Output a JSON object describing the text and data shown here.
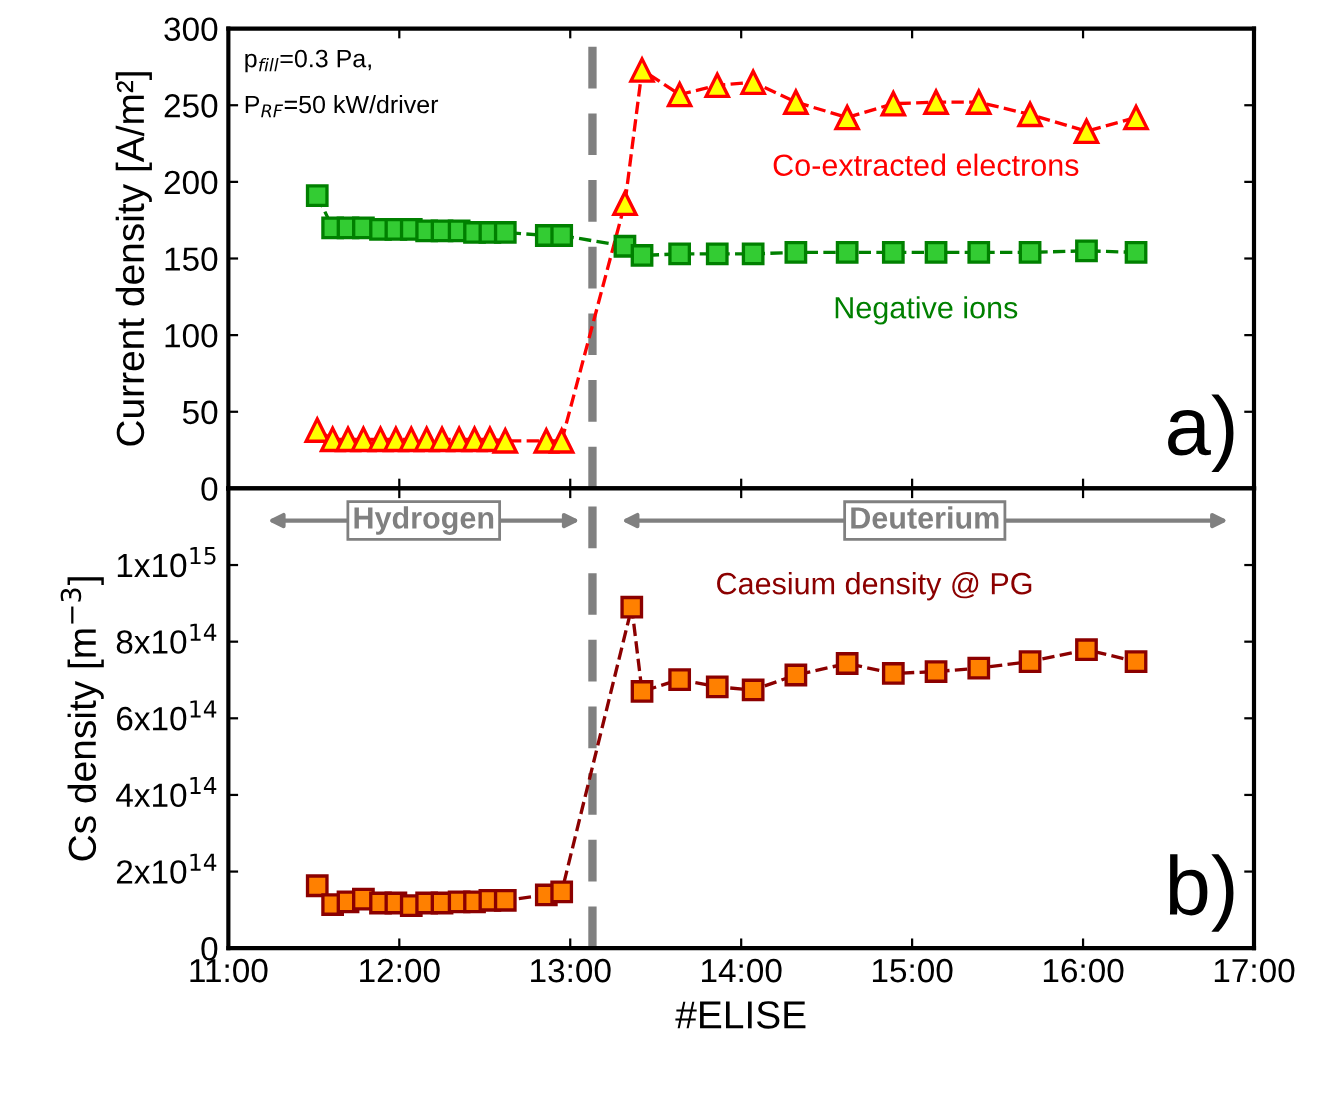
{
  "chart_data": [
    {
      "type": "line",
      "ylabel": "Current density [A/m²]",
      "tick_labels": "y",
      "marker": "circle",
      "line_style": "dashed",
      "xlim": [
        11,
        17
      ],
      "ylim": [
        0,
        300
      ],
      "yticks": [
        0,
        50,
        100,
        150,
        200,
        250,
        300
      ],
      "x": [
        11.52,
        11.61,
        11.7,
        11.79,
        11.89,
        11.98,
        12.07,
        12.16,
        12.25,
        12.35,
        12.44,
        12.53,
        12.62,
        12.86,
        12.95,
        13.32,
        13.42,
        13.64,
        13.86,
        14.07,
        14.32,
        14.62,
        14.89,
        15.14,
        15.39,
        15.69,
        16.02,
        16.31
      ],
      "series": [
        {
          "name": "Co-extracted electrons",
          "color": "#ff0000",
          "marker": "triangle",
          "values": [
            38,
            32,
            32,
            32,
            32,
            32,
            32,
            32,
            32,
            32,
            32,
            32,
            31,
            31,
            31,
            186,
            273,
            257,
            263,
            265,
            252,
            242,
            251,
            252,
            252,
            244,
            233,
            242
          ]
        },
        {
          "name": "Negative ions",
          "color": "#008000",
          "marker": "square",
          "values": [
            191,
            170,
            170,
            170,
            169,
            169,
            169,
            168,
            168,
            168,
            167,
            167,
            167,
            165,
            165,
            158,
            152,
            153,
            153,
            153,
            154,
            154,
            154,
            154,
            154,
            154,
            155,
            154
          ]
        }
      ],
      "ref_lines": [
        {
          "axis": "x",
          "value": 13.13,
          "color": "#808080",
          "line_style": "dashed"
        }
      ],
      "annotations": [
        "p$_{fill}$=0.3 Pa,",
        "P$_{RF}$=50 kW/driver",
        "a)"
      ]
    },
    {
      "type": "line",
      "ylabel": "Cs density [m$^{−3}$]",
      "xlabel": "#ELISE",
      "marker": "square",
      "line_style": "dashed",
      "xlim": [
        11,
        17
      ],
      "xticks": [
        {
          "value": 11,
          "label": "11:00"
        },
        {
          "value": 12,
          "label": "12:00"
        },
        {
          "value": 13,
          "label": "13:00"
        },
        {
          "value": 14,
          "label": "14:00"
        },
        {
          "value": 15,
          "label": "15:00"
        },
        {
          "value": 16,
          "label": "16:00"
        },
        {
          "value": 17,
          "label": "17:00"
        }
      ],
      "ylim": [
        0,
        1200000000000000.0
      ],
      "yticks": [
        0,
        {
          "value": 200000000000000.0,
          "label": "2x10$^{14}$"
        },
        {
          "value": 400000000000000.0,
          "label": "4x10$^{14}$"
        },
        {
          "value": 600000000000000.0,
          "label": "6x10$^{14}$"
        },
        {
          "value": 800000000000000.0,
          "label": "8x10$^{14}$"
        },
        {
          "value": 1000000000000000.0,
          "label": "1x10$^{15}$"
        }
      ],
      "x": [
        11.52,
        11.61,
        11.7,
        11.79,
        11.89,
        11.98,
        12.07,
        12.16,
        12.25,
        12.35,
        12.44,
        12.53,
        12.62,
        12.86,
        12.95,
        13.36,
        13.42,
        13.64,
        13.86,
        14.07,
        14.32,
        14.62,
        14.89,
        15.14,
        15.39,
        15.69,
        16.02,
        16.31
      ],
      "series": [
        {
          "name": "Caesium density @ PG",
          "color": "#8b0000",
          "values": [
            163000000000000.0,
            114000000000000.0,
            121000000000000.0,
            128000000000000.0,
            118000000000000.0,
            118000000000000.0,
            111000000000000.0,
            118000000000000.0,
            118000000000000.0,
            121000000000000.0,
            121000000000000.0,
            125000000000000.0,
            125000000000000.0,
            139000000000000.0,
            147000000000000.0,
            890000000000000.0,
            670000000000000.0,
            701000000000000.0,
            682000000000000.0,
            674000000000000.0,
            713000000000000.0,
            743000000000000.0,
            717000000000000.0,
            722000000000000.0,
            731000000000000.0,
            748000000000000.0,
            779000000000000.0,
            748000000000000.0
          ]
        }
      ],
      "ref_lines": [
        {
          "axis": "x",
          "value": 13.13,
          "color": "#808080",
          "line_style": "dashed"
        }
      ],
      "annotations": [
        "Hydrogen",
        "Deuterium",
        "b)"
      ]
    }
  ]
}
